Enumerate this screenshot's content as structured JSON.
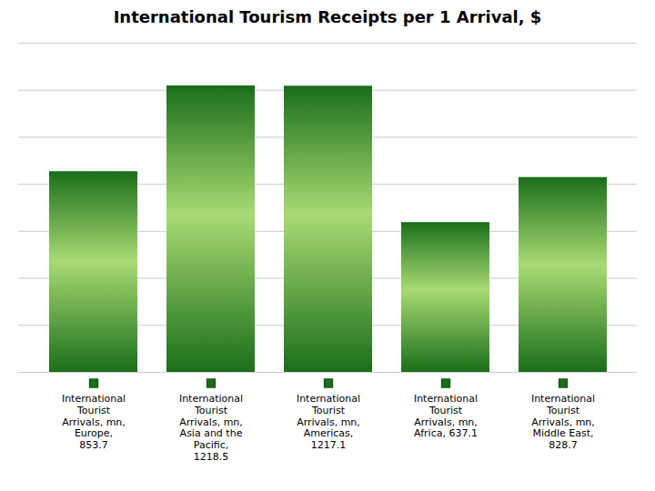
{
  "chart_data": {
    "type": "bar",
    "title": "International Tourism Receipts per 1 Arrival, $",
    "categories": [
      null,
      null,
      null,
      null,
      null
    ],
    "values": [
      853.7,
      1218.5,
      1217.1,
      637.1,
      828.7
    ],
    "annotations": [
      "International\nTourist\nArrivals, mn,\nEurope,\n853.7",
      "International\nTourist\nArrivals, mn,\nAsia and the\nPacific,\n1218.5",
      "International\nTourist\nArrivals, mn,\nAmericas,\n1217.1",
      "International\nTourist\nArrivals, mn,\nAfrica, 637.1",
      "International\nTourist\nArrivals, mn,\nMiddle East,\n828.7"
    ],
    "color": "#1a6e1a",
    "ylim": [
      0,
      1400
    ],
    "yticks": [
      0,
      200,
      400,
      600,
      800,
      1000,
      1200,
      1400
    ],
    "grid": true,
    "tick_labels": false
  }
}
